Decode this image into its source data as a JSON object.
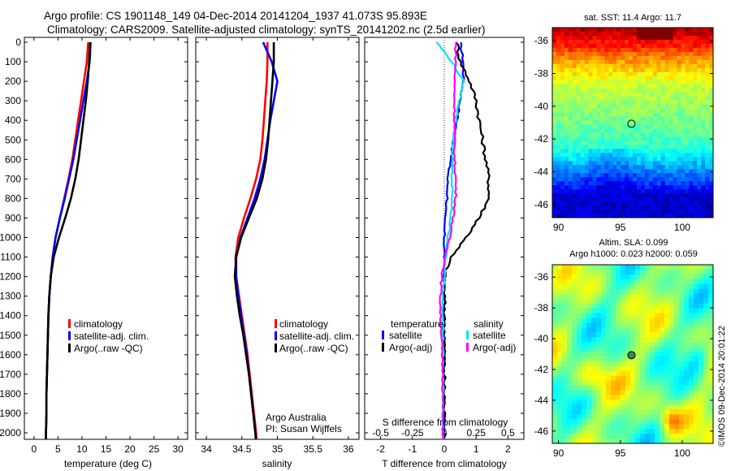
{
  "header": {
    "line1": "Argo profile: CS 1901148_149 04-Dec-2014 20141204_1937 41.073S 95.893E",
    "line2": "Climatology: CARS2009. Satellite-adjusted climatology: synTS_20141202.nc (2.5d earlier)"
  },
  "watermark": "©IMOS 09-Dec-2014 20:01:22",
  "depth_ticks": [
    "0",
    "100",
    "200",
    "300",
    "400",
    "500",
    "600",
    "700",
    "800",
    "900",
    "1000",
    "1100",
    "1200",
    "1300",
    "1400",
    "1500",
    "1600",
    "1700",
    "1800",
    "1900",
    "2000"
  ],
  "panels": {
    "temperature": {
      "xlabel": "temperature (deg C)",
      "ticks": [
        "0",
        "5",
        "10",
        "15",
        "20",
        "25",
        "30"
      ],
      "legend": [
        "climatology",
        "satellite-adj. clim.",
        "Argo(..raw -QC)"
      ]
    },
    "salinity": {
      "xlabel": "salinity",
      "ticks": [
        "34",
        "34.5",
        "35",
        "35.5",
        "36"
      ],
      "legend": [
        "climatology",
        "satellite-adj. clim.",
        "Argo(..raw -QC)"
      ],
      "note1": "Argo Australia",
      "note2": "PI: Susan Wijffels"
    },
    "difference": {
      "xlabel_bottom": "T difference from climatology",
      "xlabel_top": "S difference from climatology",
      "ticks_bottom": [
        "-2",
        "-1",
        "0",
        "1",
        "2"
      ],
      "ticks_top": [
        "-0.5",
        "-0.25",
        "0",
        "0.25",
        "0.5"
      ],
      "legend_temp_title": "temperature",
      "legend_sal_title": "salinity",
      "legend_temp": [
        "satellite",
        "Argo(-adj)"
      ],
      "legend_sal": [
        "satellite",
        "Argo(-adj)"
      ]
    },
    "map_sst": {
      "title": "sat. SST: 11.4  Argo: 11.7",
      "yticks": [
        "-36",
        "-38",
        "-40",
        "-42",
        "-44",
        "-46"
      ],
      "xticks": [
        "90",
        "95",
        "100"
      ]
    },
    "map_sla": {
      "title1": "Altim. SLA: 0.099",
      "title2": "Argo h1000: 0.023 h2000: 0.059",
      "yticks": [
        "-36",
        "-38",
        "-40",
        "-42",
        "-44",
        "-46"
      ],
      "xticks": [
        "90",
        "95",
        "100"
      ]
    }
  },
  "colors": {
    "climatology": "#ff0000",
    "satellite": "#0000ff",
    "argo": "#000000",
    "sal_satellite": "#00e5ee",
    "sal_argo": "#ff00ff"
  },
  "chart_data": [
    {
      "type": "line",
      "xlabel": "temperature (deg C)",
      "ylabel": "",
      "xlim": [
        -2,
        32
      ],
      "ylim": [
        2050,
        0
      ],
      "series": [
        {
          "name": "climatology",
          "x": [
            11.3,
            11.0,
            10.4,
            9.8,
            9.2,
            8.6,
            8.0,
            7.2,
            6.3,
            5.4,
            4.5,
            3.9,
            3.5,
            3.2,
            3.0,
            2.9,
            2.8,
            2.7,
            2.6,
            2.6,
            2.5,
            2.5
          ],
          "y": [
            0,
            100,
            200,
            300,
            400,
            500,
            600,
            700,
            800,
            900,
            1000,
            1100,
            1200,
            1300,
            1400,
            1500,
            1600,
            1700,
            1800,
            1900,
            2000,
            2050
          ]
        },
        {
          "name": "satellite-adj. clim.",
          "x": [
            11.8,
            11.6,
            11.0,
            10.3,
            9.6,
            8.9,
            8.2,
            7.3,
            6.4,
            5.4,
            4.5,
            3.9,
            3.5,
            3.2,
            3.0,
            2.9,
            2.8,
            2.7,
            2.6,
            2.6,
            2.5,
            2.5
          ],
          "y": [
            0,
            100,
            200,
            300,
            400,
            500,
            600,
            700,
            800,
            900,
            1000,
            1100,
            1200,
            1300,
            1400,
            1500,
            1600,
            1700,
            1800,
            1900,
            2000,
            2050
          ]
        },
        {
          "name": "Argo(..raw -QC)",
          "x": [
            11.7,
            11.5,
            11.2,
            10.8,
            10.3,
            9.8,
            9.3,
            8.6,
            7.7,
            6.5,
            5.2,
            4.1,
            3.5,
            3.2,
            3.0,
            2.9,
            2.8,
            2.7,
            2.6,
            2.6,
            2.5,
            2.5
          ],
          "y": [
            0,
            100,
            200,
            300,
            400,
            500,
            600,
            700,
            800,
            900,
            1000,
            1100,
            1200,
            1300,
            1400,
            1500,
            1600,
            1700,
            1800,
            1900,
            2000,
            2050
          ]
        }
      ]
    },
    {
      "type": "line",
      "xlabel": "salinity",
      "ylabel": "",
      "xlim": [
        33.85,
        36.15
      ],
      "ylim": [
        2050,
        0
      ],
      "series": [
        {
          "name": "climatology",
          "x": [
            34.86,
            34.86,
            34.85,
            34.83,
            34.81,
            34.79,
            34.76,
            34.7,
            34.62,
            34.53,
            34.45,
            34.41,
            34.42,
            34.46,
            34.5,
            34.54,
            34.58,
            34.61,
            34.64,
            34.67,
            34.7,
            34.71
          ],
          "y": [
            0,
            100,
            200,
            300,
            400,
            500,
            600,
            700,
            800,
            900,
            1000,
            1100,
            1200,
            1300,
            1400,
            1500,
            1600,
            1700,
            1800,
            1900,
            2000,
            2050
          ]
        },
        {
          "name": "satellite-adj. clim.",
          "x": [
            34.8,
            34.92,
            35.0,
            34.95,
            34.9,
            34.86,
            34.82,
            34.76,
            34.68,
            34.58,
            34.48,
            34.42,
            34.42,
            34.45,
            34.49,
            34.53,
            34.57,
            34.6,
            34.63,
            34.66,
            34.69,
            34.7
          ],
          "y": [
            0,
            100,
            200,
            300,
            400,
            500,
            600,
            700,
            800,
            900,
            1000,
            1100,
            1200,
            1300,
            1400,
            1500,
            1600,
            1700,
            1800,
            1900,
            2000,
            2050
          ]
        },
        {
          "name": "Argo(..raw -QC)",
          "x": [
            34.95,
            34.95,
            34.93,
            34.91,
            34.89,
            34.87,
            34.84,
            34.79,
            34.71,
            34.6,
            34.49,
            34.42,
            34.4,
            34.43,
            34.47,
            34.52,
            34.56,
            34.6,
            34.63,
            34.66,
            34.69,
            34.7
          ],
          "y": [
            0,
            100,
            200,
            300,
            400,
            500,
            600,
            700,
            800,
            900,
            1000,
            1100,
            1200,
            1300,
            1400,
            1500,
            1600,
            1700,
            1800,
            1900,
            2000,
            2050
          ]
        }
      ]
    },
    {
      "type": "line",
      "xlabel": "T difference from climatology",
      "x2label": "S difference from climatology",
      "ylabel": "",
      "xlim": [
        -2.5,
        2.5
      ],
      "x2lim": [
        -0.625,
        0.625
      ],
      "ylim": [
        2050,
        0
      ],
      "series": [
        {
          "name": "satellite",
          "axis": "T",
          "x": [
            0.5,
            0.6,
            0.6,
            0.5,
            0.4,
            0.3,
            0.2,
            0.1,
            0.1,
            0.0,
            0.0,
            0.0,
            0.0,
            0.0,
            0.0,
            0.0,
            0.0,
            0.0,
            0.0,
            0.0,
            0.0,
            0.0
          ],
          "y": [
            0,
            100,
            200,
            300,
            400,
            500,
            600,
            700,
            800,
            900,
            1000,
            1100,
            1200,
            1300,
            1400,
            1500,
            1600,
            1700,
            1800,
            1900,
            2000,
            2050
          ]
        },
        {
          "name": "Argo(-adj)",
          "axis": "T",
          "x": [
            0.4,
            0.5,
            0.8,
            1.0,
            1.1,
            1.2,
            1.3,
            1.4,
            1.4,
            1.1,
            0.7,
            0.2,
            0.0,
            0.0,
            0.0,
            0.0,
            0.0,
            0.0,
            0.0,
            0.0,
            0.0,
            0.0
          ],
          "y": [
            0,
            100,
            200,
            300,
            400,
            500,
            600,
            700,
            800,
            900,
            1000,
            1100,
            1200,
            1300,
            1400,
            1500,
            1600,
            1700,
            1800,
            1900,
            2000,
            2050
          ]
        },
        {
          "name": "satellite",
          "axis": "S",
          "x": [
            -0.06,
            0.06,
            0.15,
            0.12,
            0.09,
            0.07,
            0.06,
            0.06,
            0.06,
            0.05,
            0.03,
            0.01,
            0.0,
            -0.01,
            -0.01,
            -0.01,
            -0.01,
            -0.01,
            -0.01,
            -0.01,
            -0.01,
            -0.01
          ],
          "y": [
            0,
            100,
            200,
            300,
            400,
            500,
            600,
            700,
            800,
            900,
            1000,
            1100,
            1200,
            1300,
            1400,
            1500,
            1600,
            1700,
            1800,
            1900,
            2000,
            2050
          ]
        },
        {
          "name": "Argo(-adj)",
          "axis": "S",
          "x": [
            0.09,
            0.09,
            0.08,
            0.08,
            0.08,
            0.08,
            0.08,
            0.09,
            0.09,
            0.07,
            0.04,
            0.01,
            -0.02,
            -0.03,
            -0.03,
            -0.02,
            -0.02,
            -0.01,
            -0.01,
            -0.01,
            -0.01,
            -0.01
          ],
          "y": [
            0,
            100,
            200,
            300,
            400,
            500,
            600,
            700,
            800,
            900,
            1000,
            1100,
            1200,
            1300,
            1400,
            1500,
            1600,
            1700,
            1800,
            1900,
            2000,
            2050
          ]
        }
      ]
    },
    {
      "type": "heatmap",
      "title": "sat. SST: 11.4  Argo: 11.7",
      "xlim": [
        89.5,
        102.5
      ],
      "ylim": [
        -46.8,
        -35.2
      ],
      "marker": {
        "x": 95.9,
        "y": -41.07
      }
    },
    {
      "type": "heatmap",
      "title": "Altim. SLA: 0.099",
      "subtitle": "Argo h1000: 0.023 h2000: 0.059",
      "xlim": [
        89.5,
        102.5
      ],
      "ylim": [
        -46.8,
        -35.2
      ],
      "marker": {
        "x": 95.9,
        "y": -41.07
      }
    }
  ]
}
